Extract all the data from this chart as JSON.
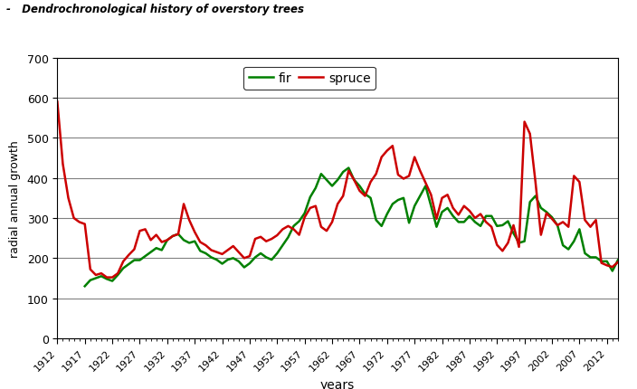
{
  "title": "-   Dendrochronological history of overstory trees",
  "xlabel": "years",
  "ylabel": "radial annual growth",
  "ylim": [
    0,
    700
  ],
  "yticks": [
    0,
    100,
    200,
    300,
    400,
    500,
    600,
    700
  ],
  "fir_color": "#008000",
  "spruce_color": "#cc0000",
  "legend_fir": "fir",
  "legend_spruce": "spruce",
  "years": [
    1912,
    1913,
    1914,
    1915,
    1916,
    1917,
    1918,
    1919,
    1920,
    1921,
    1922,
    1923,
    1924,
    1925,
    1926,
    1927,
    1928,
    1929,
    1930,
    1931,
    1932,
    1933,
    1934,
    1935,
    1936,
    1937,
    1938,
    1939,
    1940,
    1941,
    1942,
    1943,
    1944,
    1945,
    1946,
    1947,
    1948,
    1949,
    1950,
    1951,
    1952,
    1953,
    1954,
    1955,
    1956,
    1957,
    1958,
    1959,
    1960,
    1961,
    1962,
    1963,
    1964,
    1965,
    1966,
    1967,
    1968,
    1969,
    1970,
    1971,
    1972,
    1973,
    1974,
    1975,
    1976,
    1977,
    1978,
    1979,
    1980,
    1981,
    1982,
    1983,
    1984,
    1985,
    1986,
    1987,
    1988,
    1989,
    1990,
    1991,
    1992,
    1993,
    1994,
    1995,
    1996,
    1997,
    1998,
    1999,
    2000,
    2001,
    2002,
    2003,
    2004,
    2005,
    2006,
    2007,
    2008,
    2009,
    2010,
    2011,
    2012,
    2013,
    2014
  ],
  "fir": [
    null,
    null,
    null,
    null,
    null,
    130,
    145,
    150,
    155,
    148,
    143,
    158,
    175,
    185,
    195,
    195,
    205,
    215,
    225,
    220,
    245,
    255,
    260,
    245,
    238,
    242,
    218,
    212,
    202,
    196,
    186,
    196,
    200,
    192,
    177,
    187,
    202,
    212,
    202,
    196,
    212,
    232,
    252,
    280,
    292,
    312,
    352,
    375,
    410,
    395,
    380,
    395,
    415,
    425,
    395,
    380,
    360,
    350,
    295,
    280,
    310,
    335,
    345,
    350,
    288,
    330,
    355,
    380,
    330,
    278,
    315,
    325,
    305,
    290,
    290,
    305,
    290,
    280,
    305,
    305,
    280,
    282,
    292,
    262,
    238,
    242,
    340,
    355,
    325,
    315,
    302,
    282,
    232,
    222,
    242,
    272,
    212,
    202,
    202,
    192,
    192,
    168,
    195
  ],
  "spruce": [
    590,
    435,
    350,
    300,
    290,
    285,
    172,
    158,
    162,
    152,
    152,
    162,
    192,
    208,
    222,
    268,
    272,
    245,
    258,
    240,
    245,
    255,
    260,
    335,
    295,
    265,
    240,
    232,
    220,
    215,
    210,
    220,
    230,
    215,
    200,
    205,
    248,
    253,
    242,
    248,
    257,
    272,
    280,
    272,
    258,
    302,
    325,
    330,
    278,
    268,
    290,
    335,
    355,
    418,
    395,
    368,
    355,
    390,
    410,
    452,
    468,
    480,
    408,
    398,
    405,
    452,
    418,
    388,
    358,
    298,
    350,
    358,
    325,
    308,
    330,
    318,
    300,
    310,
    290,
    278,
    233,
    218,
    238,
    282,
    228,
    540,
    510,
    390,
    258,
    312,
    298,
    282,
    290,
    278,
    405,
    390,
    295,
    278,
    295,
    188,
    182,
    178,
    190
  ]
}
